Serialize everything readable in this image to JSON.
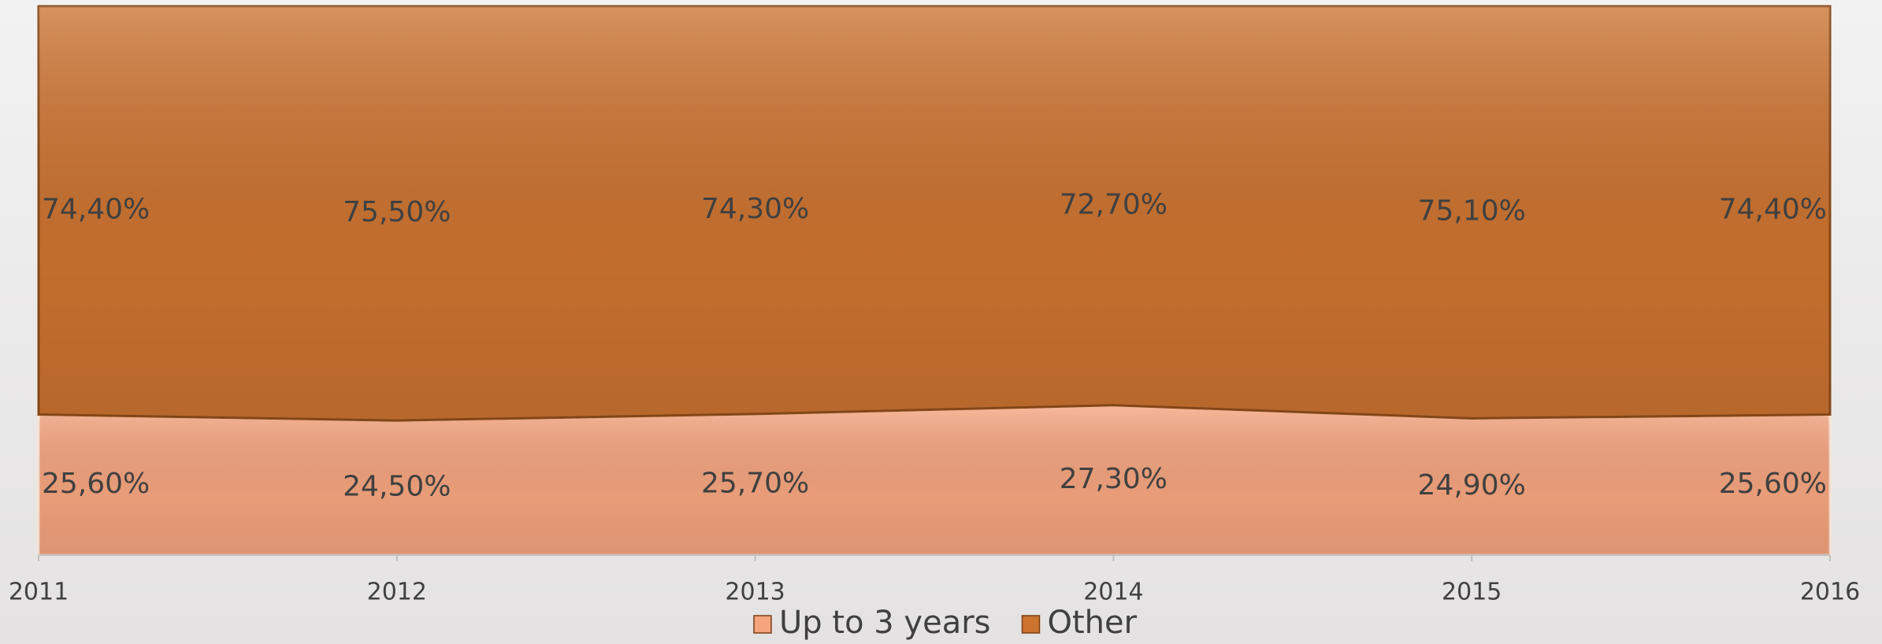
{
  "chart_data": {
    "type": "stacked_area",
    "categories": [
      "2011",
      "2012",
      "2013",
      "2014",
      "2015",
      "2016"
    ],
    "series": [
      {
        "name": "Up to 3 years",
        "color": "#f5a47e",
        "values": [
          25.6,
          24.5,
          25.7,
          27.3,
          24.9,
          25.6
        ],
        "value_labels": [
          "25,60%",
          "24,50%",
          "25,70%",
          "27,30%",
          "24,90%",
          "25,60%"
        ]
      },
      {
        "name": "Other",
        "color": "#cc7330",
        "values": [
          74.4,
          75.5,
          74.3,
          72.7,
          75.1,
          74.4
        ],
        "value_labels": [
          "74,40%",
          "75,50%",
          "74,30%",
          "72,70%",
          "75,10%",
          "74,40%"
        ]
      }
    ],
    "ylim": [
      0,
      100
    ],
    "legend": "bottom"
  }
}
